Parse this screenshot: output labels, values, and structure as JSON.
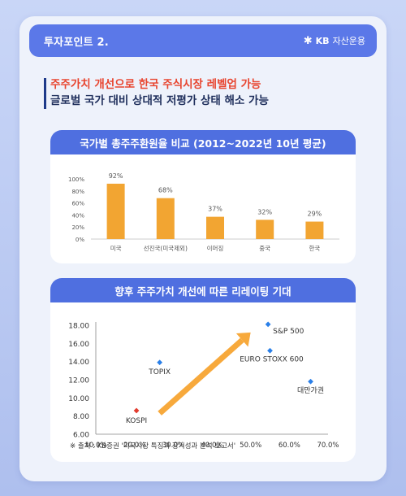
{
  "header": {
    "title": "투자포인트 2.",
    "brand_icon": "✱",
    "brand_kb": "KB",
    "brand_name": "자산운용"
  },
  "headline": {
    "line1": "주주가치 개선으로 한국 주식시장 레벨업 가능",
    "line2": "글로벌 국가 대비 상대적 저평가 상태 해소 가능"
  },
  "source_note": "※ 출처 : KB증권 '미국시장 특징과 장기성과 분석 보고서'",
  "colors": {
    "bar": "#f2a532",
    "header": "#5b78e8",
    "panel_head": "#4f6fe0",
    "point": "#2a7fe8",
    "kospi": "#e23b2e",
    "arrow": "#f7a93c"
  },
  "chart_data": [
    {
      "type": "bar",
      "title": "국가별 총주주환원율 비교 (2012~2022년 10년 평균)",
      "categories": [
        "미국",
        "선진국(미국제외)",
        "이머징",
        "중국",
        "한국"
      ],
      "values": [
        92,
        68,
        37,
        32,
        29
      ],
      "value_labels": [
        "92%",
        "68%",
        "37%",
        "32%",
        "29%"
      ],
      "yticks": [
        "0%",
        "20%",
        "40%",
        "60%",
        "80%",
        "100%"
      ],
      "ylim": [
        0,
        100
      ]
    },
    {
      "type": "scatter",
      "title": "향후 주주가치 개선에 따른 리레이팅 기대",
      "points": [
        {
          "name": "S&P 500",
          "x": 54.5,
          "y": 18.1,
          "color": "#2a7fe8"
        },
        {
          "name": "EURO STOXX 600",
          "x": 55.0,
          "y": 15.2,
          "color": "#2a7fe8"
        },
        {
          "name": "대만가권",
          "x": 65.5,
          "y": 11.8,
          "color": "#2a7fe8"
        },
        {
          "name": "TOPIX",
          "x": 26.5,
          "y": 13.9,
          "color": "#2a7fe8"
        },
        {
          "name": "KOSPI",
          "x": 20.5,
          "y": 8.6,
          "color": "#e23b2e"
        }
      ],
      "xticks": [
        "10.0%",
        "20.0%",
        "30.0%",
        "40.0%",
        "50.0%",
        "60.0%",
        "70.0%"
      ],
      "yticks": [
        "6.00",
        "8.00",
        "10.00",
        "12.00",
        "14.00",
        "16.00",
        "18.00"
      ],
      "xlim": [
        10,
        70
      ],
      "ylim": [
        6,
        18
      ],
      "arrow": {
        "from": {
          "x": 26.5,
          "y": 8.3
        },
        "to": {
          "x": 50.0,
          "y": 17.2
        }
      }
    }
  ]
}
